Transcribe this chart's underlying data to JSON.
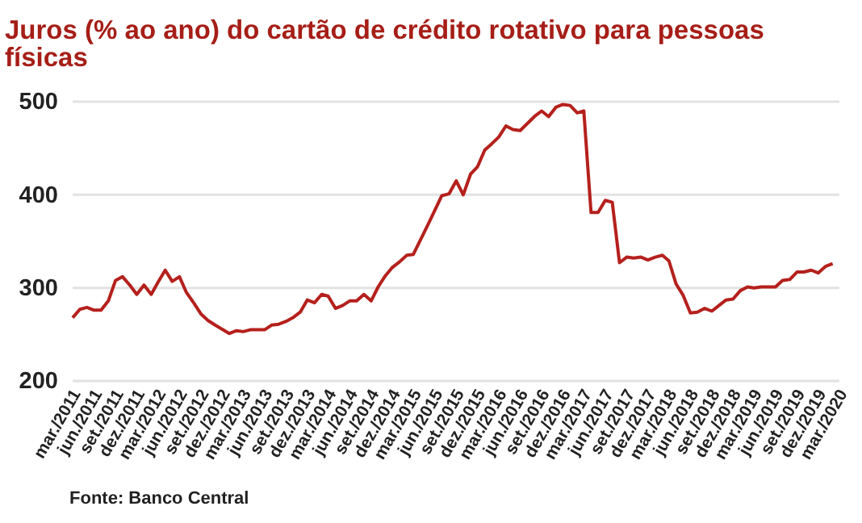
{
  "chart_data": {
    "type": "line",
    "title": "Juros (% ao ano) do cartão de crédito rotativo para pessoas físicas",
    "annotations": [
      "Fonte: Banco Central"
    ],
    "series": [
      {
        "color": "#b5201c",
        "x": [
          "2011-03",
          "2011-04",
          "2011-05",
          "2011-06",
          "2011-07",
          "2011-08",
          "2011-09",
          "2011-10",
          "2011-11",
          "2011-12",
          "2012-01",
          "2012-02",
          "2012-03",
          "2012-04",
          "2012-05",
          "2012-06",
          "2012-07",
          "2012-08",
          "2012-09",
          "2012-10",
          "2012-11",
          "2013-01",
          "2013-02",
          "2013-03",
          "2013-04",
          "2013-06",
          "2013-07",
          "2013-08",
          "2013-09",
          "2013-10",
          "2013-11",
          "2013-12",
          "2014-01",
          "2014-02",
          "2014-03",
          "2014-04",
          "2014-05",
          "2014-06",
          "2014-07",
          "2014-08",
          "2014-09",
          "2014-10",
          "2014-11",
          "2014-12",
          "2015-01",
          "2015-02",
          "2015-03",
          "2015-05",
          "2015-07",
          "2015-08",
          "2015-09",
          "2015-10",
          "2015-11",
          "2015-12",
          "2016-01",
          "2016-02",
          "2016-03",
          "2016-04",
          "2016-05",
          "2016-06",
          "2016-08",
          "2016-09",
          "2016-10",
          "2016-11",
          "2016-12",
          "2017-01",
          "2017-02",
          "2017-03",
          "2017-04",
          "2017-05",
          "2017-06",
          "2017-07",
          "2017-08",
          "2017-09",
          "2017-10",
          "2017-11",
          "2017-12",
          "2018-01",
          "2018-02",
          "2018-03",
          "2018-04",
          "2018-05",
          "2018-06",
          "2018-07",
          "2018-08",
          "2018-09",
          "2018-10",
          "2018-11",
          "2018-12",
          "2019-01",
          "2019-02",
          "2019-03",
          "2019-04",
          "2019-05",
          "2019-06",
          "2019-07",
          "2019-08",
          "2019-09",
          "2019-10",
          "2019-11",
          "2019-12",
          "2020-01",
          "2020-02"
        ],
        "values": [
          268,
          277,
          279,
          276,
          276,
          286,
          308,
          312,
          303,
          293,
          303,
          293,
          306,
          319,
          307,
          312,
          295,
          284,
          272,
          265,
          260,
          251,
          254,
          253,
          255,
          255,
          260,
          261,
          264,
          268,
          274,
          287,
          284,
          293,
          291,
          278,
          281,
          286,
          286,
          293,
          286,
          301,
          313,
          322,
          328,
          335,
          336,
          367,
          399,
          401,
          415,
          400,
          422,
          430,
          448,
          455,
          462,
          474,
          470,
          469,
          484,
          490,
          484,
          494,
          497,
          496,
          488,
          490,
          381,
          381,
          394,
          392,
          327,
          333,
          332,
          333,
          330,
          333,
          335,
          329,
          304,
          292,
          273,
          274,
          278,
          275,
          281,
          287,
          288,
          297,
          301,
          300,
          301,
          301,
          301,
          308,
          309,
          317,
          317,
          319,
          316,
          323,
          326
        ]
      }
    ],
    "xlim": [
      "2011-03",
      "2020-03"
    ],
    "xticks": [
      {
        "value": "2011-03",
        "label": "mar./2011"
      },
      {
        "value": "2011-06",
        "label": "jun./2011"
      },
      {
        "value": "2011-09",
        "label": "set./2011"
      },
      {
        "value": "2011-12",
        "label": "dez./2011"
      },
      {
        "value": "2012-03",
        "label": "mar./2012"
      },
      {
        "value": "2012-06",
        "label": "jun./2012"
      },
      {
        "value": "2012-09",
        "label": "set./2012"
      },
      {
        "value": "2012-12",
        "label": "dez./2012"
      },
      {
        "value": "2013-03",
        "label": "mar./2013"
      },
      {
        "value": "2013-06",
        "label": "jun./2013"
      },
      {
        "value": "2013-09",
        "label": "set./2013"
      },
      {
        "value": "2013-12",
        "label": "dez./2013"
      },
      {
        "value": "2014-03",
        "label": "mar./2014"
      },
      {
        "value": "2014-06",
        "label": "jun./2014"
      },
      {
        "value": "2014-09",
        "label": "set./2014"
      },
      {
        "value": "2014-12",
        "label": "dez./2014"
      },
      {
        "value": "2015-03",
        "label": "mar./2015"
      },
      {
        "value": "2015-06",
        "label": "jun./2015"
      },
      {
        "value": "2015-09",
        "label": "set./2015"
      },
      {
        "value": "2015-12",
        "label": "dez./2015"
      },
      {
        "value": "2016-03",
        "label": "mar./2016"
      },
      {
        "value": "2016-06",
        "label": "jun./2016"
      },
      {
        "value": "2016-09",
        "label": "set./2016"
      },
      {
        "value": "2016-12",
        "label": "dez./2016"
      },
      {
        "value": "2017-03",
        "label": "mar./2017"
      },
      {
        "value": "2017-06",
        "label": "jun./2017"
      },
      {
        "value": "2017-09",
        "label": "set./2017"
      },
      {
        "value": "2017-12",
        "label": "dez./2017"
      },
      {
        "value": "2018-03",
        "label": "mar./2018"
      },
      {
        "value": "2018-06",
        "label": "jun./2018"
      },
      {
        "value": "2018-09",
        "label": "set./2018"
      },
      {
        "value": "2018-12",
        "label": "dez./2018"
      },
      {
        "value": "2019-03",
        "label": "mar./2019"
      },
      {
        "value": "2019-06",
        "label": "jun./2019"
      },
      {
        "value": "2019-09",
        "label": "set./2019"
      },
      {
        "value": "2019-12",
        "label": "dez./2019"
      },
      {
        "value": "2020-03",
        "label": "mar./2020"
      }
    ],
    "ylim": [
      200,
      500
    ],
    "yticks": [
      200,
      300,
      400,
      500
    ],
    "grid": "y",
    "marker": "none",
    "line_style": "solid"
  }
}
